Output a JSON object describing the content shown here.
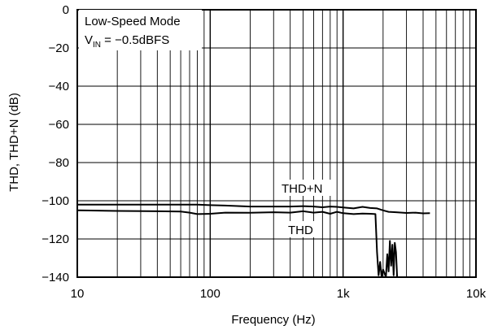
{
  "chart_data": {
    "type": "line",
    "xscale": "log",
    "xlim": [
      10,
      10000
    ],
    "ylim": [
      -140,
      0
    ],
    "grid": true,
    "xlabel": "Frequency (Hz)",
    "ylabel": "THD, THD+N (dB)",
    "xticks": [
      10,
      100,
      1000,
      10000
    ],
    "xtick_labels": [
      "10",
      "100",
      "1k",
      "10k"
    ],
    "yticks": [
      0,
      -20,
      -40,
      -60,
      -80,
      -100,
      -120,
      -140
    ],
    "ytick_labels": [
      "0",
      "−20",
      "−40",
      "−60",
      "−80",
      "−100",
      "−120",
      "−140"
    ],
    "annotations": {
      "mode": "Low-Speed Mode",
      "vin_main": "V",
      "vin_sub": "IN",
      "vin_rest": " = −0.5dBFS",
      "thdn_label": "THD+N",
      "thd_label": "THD"
    },
    "series": [
      {
        "name": "THD+N",
        "x": [
          10,
          20,
          40,
          60,
          80,
          100,
          130,
          200,
          300,
          400,
          500,
          600,
          700,
          800,
          900,
          1000,
          1200,
          1400,
          1600,
          1800,
          2000,
          2200,
          2500,
          3000,
          3500,
          4000,
          4500
        ],
        "y": [
          -102,
          -102,
          -102,
          -102,
          -102,
          -102.3,
          -102.5,
          -103,
          -103,
          -103,
          -102.8,
          -103,
          -103.4,
          -103,
          -103.2,
          -103.5,
          -104,
          -103.2,
          -103.8,
          -104,
          -105,
          -105.8,
          -106,
          -106.4,
          -106.2,
          -106.6,
          -106.5
        ]
      },
      {
        "name": "THD",
        "x": [
          10,
          20,
          40,
          60,
          70,
          80,
          100,
          130,
          200,
          300,
          400,
          500,
          600,
          700,
          800,
          900,
          1000,
          1200,
          1400,
          1600,
          1750,
          1800,
          1850,
          1900,
          1950,
          2000,
          2050,
          2100,
          2150,
          2200,
          2250,
          2300,
          2350,
          2400,
          2450,
          2500,
          2550
        ],
        "y": [
          -105,
          -105.3,
          -105.5,
          -105.6,
          -106.2,
          -107,
          -106.8,
          -106.2,
          -106.3,
          -106,
          -106.2,
          -105.5,
          -106.2,
          -105.8,
          -106.8,
          -105.8,
          -106.5,
          -107,
          -106.7,
          -106.8,
          -107,
          -127,
          -139,
          -132,
          -140,
          -136,
          -138,
          -140,
          -128,
          -137,
          -121,
          -134,
          -123,
          -139,
          -122,
          -127,
          -140
        ]
      }
    ]
  }
}
